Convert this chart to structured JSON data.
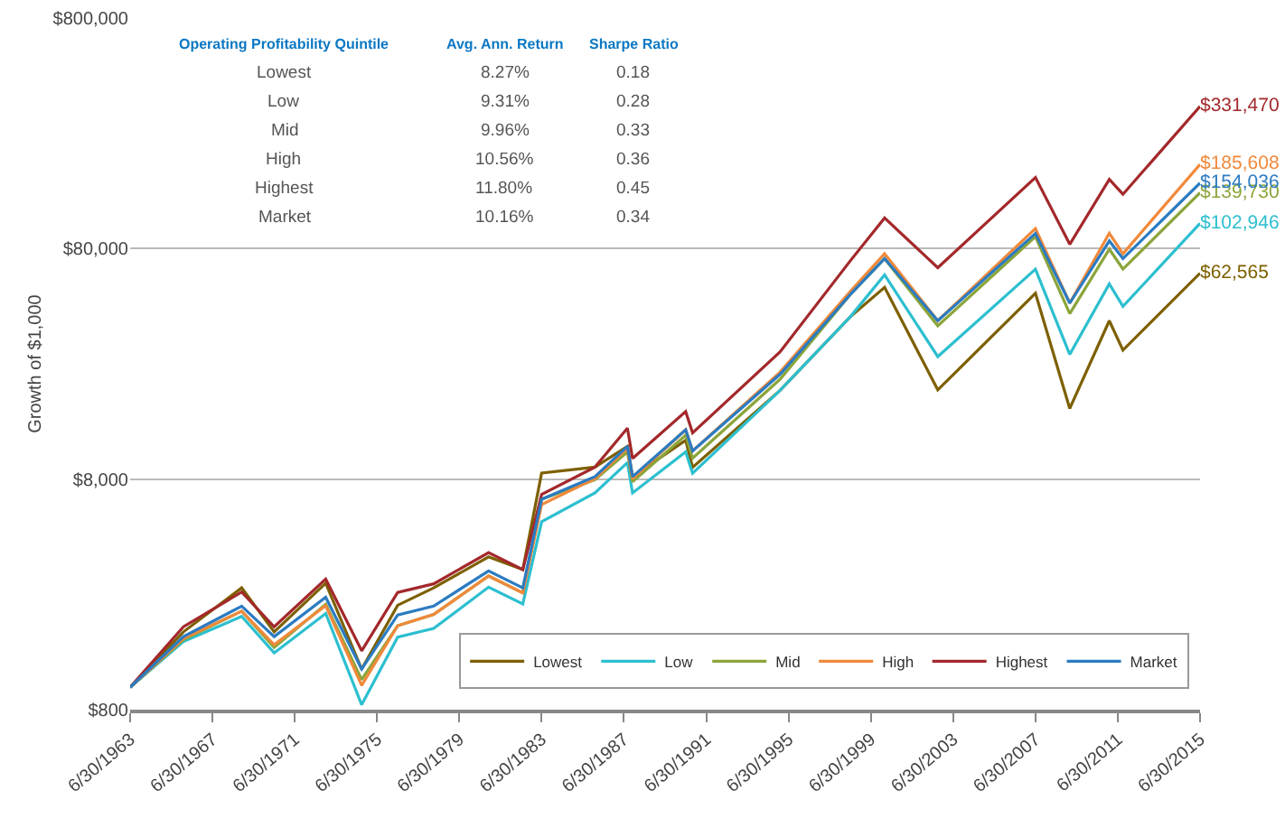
{
  "chart_data": {
    "type": "line",
    "ylabel": "Growth of $1,000",
    "log": "y",
    "grid": "y",
    "legend": "bottom right",
    "marker": "none",
    "line_style": "solid",
    "x": [
      "1963-06-30",
      "1966-01-31",
      "1968-11-30",
      "1970-06-30",
      "1972-12-31",
      "1974-09-30",
      "1976-06-30",
      "1978-03-31",
      "1980-11-30",
      "1982-07-31",
      "1983-06-30",
      "1986-01-31",
      "1987-08-31",
      "1987-11-30",
      "1990-06-30",
      "1990-10-31",
      "1995-01-31",
      "1998-06-30",
      "2000-02-29",
      "2002-09-30",
      "2007-06-30",
      "2009-02-28",
      "2011-01-31",
      "2011-09-30",
      "2015-06-30"
    ],
    "xlim": [
      "1963-06-30",
      "2015-06-30"
    ],
    "xticks": [
      {
        "value": "1963-06-30",
        "label": "6/30/1963"
      },
      {
        "value": "1967-06-30",
        "label": "6/30/1967"
      },
      {
        "value": "1971-06-30",
        "label": "6/30/1971"
      },
      {
        "value": "1975-06-30",
        "label": "6/30/1975"
      },
      {
        "value": "1979-06-30",
        "label": "6/30/1979"
      },
      {
        "value": "1983-06-30",
        "label": "6/30/1983"
      },
      {
        "value": "1987-06-30",
        "label": "6/30/1987"
      },
      {
        "value": "1991-06-30",
        "label": "6/30/1991"
      },
      {
        "value": "1995-06-30",
        "label": "6/30/1995"
      },
      {
        "value": "1999-06-30",
        "label": "6/30/1999"
      },
      {
        "value": "2003-06-30",
        "label": "6/30/2003"
      },
      {
        "value": "2007-06-30",
        "label": "6/30/2007"
      },
      {
        "value": "2011-06-30",
        "label": "6/30/2011"
      },
      {
        "value": "2015-06-30",
        "label": "6/30/2015"
      }
    ],
    "ylim": [
      800,
      800000
    ],
    "yticks": [
      {
        "value": 800,
        "label": "$800"
      },
      {
        "value": 8000,
        "label": "$8,000"
      },
      {
        "value": 80000,
        "label": "$80,000"
      },
      {
        "value": 800000,
        "label": "$800,000"
      }
    ],
    "series": [
      {
        "name": "Lowest",
        "color": "#7d6000",
        "values": [
          1000,
          1740,
          2700,
          1740,
          2830,
          1200,
          2270,
          2700,
          3680,
          3240,
          8500,
          9020,
          11100,
          8200,
          11800,
          9000,
          19400,
          40500,
          54300,
          19500,
          51200,
          16200,
          38900,
          29000,
          62565
        ],
        "value_labels": [
          null,
          null,
          null,
          null,
          null,
          null,
          null,
          null,
          null,
          null,
          null,
          null,
          null,
          null,
          null,
          null,
          null,
          null,
          null,
          null,
          null,
          null,
          null,
          null,
          "$62,565"
        ]
      },
      {
        "name": "Low",
        "color": "#2cbfcf",
        "values": [
          1000,
          1580,
          2030,
          1410,
          2090,
          840,
          1650,
          1800,
          2720,
          2300,
          5230,
          6970,
          9440,
          6970,
          10500,
          8480,
          19400,
          40500,
          61500,
          27200,
          65100,
          27800,
          56200,
          44900,
          102946
        ],
        "value_labels": [
          null,
          null,
          null,
          null,
          null,
          null,
          null,
          null,
          null,
          null,
          null,
          null,
          null,
          null,
          null,
          null,
          null,
          null,
          null,
          null,
          null,
          null,
          null,
          null,
          "$102,946"
        ]
      },
      {
        "name": "Mid",
        "color": "#8ba53a",
        "values": [
          1000,
          1610,
          2140,
          1490,
          2290,
          1080,
          1850,
          2070,
          3040,
          2570,
          6540,
          7950,
          10500,
          7790,
          12400,
          9860,
          21700,
          50600,
          72400,
          37000,
          90200,
          41800,
          79500,
          65200,
          139730
        ],
        "value_labels": [
          null,
          null,
          null,
          null,
          null,
          null,
          null,
          null,
          null,
          null,
          null,
          null,
          null,
          null,
          null,
          null,
          null,
          null,
          null,
          null,
          null,
          null,
          null,
          null,
          "$139,730"
        ]
      },
      {
        "name": "High",
        "color": "#f0893b",
        "values": [
          1000,
          1630,
          2140,
          1530,
          2260,
          1020,
          1850,
          2070,
          3040,
          2570,
          6210,
          8040,
          10900,
          8040,
          13100,
          10600,
          23300,
          52100,
          76000,
          38900,
          97700,
          46400,
          93300,
          76000,
          185608
        ],
        "value_labels": [
          null,
          null,
          null,
          null,
          null,
          null,
          null,
          null,
          null,
          null,
          null,
          null,
          null,
          null,
          null,
          null,
          null,
          null,
          null,
          null,
          null,
          null,
          null,
          null,
          "$185,608"
        ]
      },
      {
        "name": "Highest",
        "color": "#a3282b",
        "values": [
          1000,
          1830,
          2590,
          1830,
          2950,
          1440,
          2580,
          2810,
          3840,
          3240,
          6870,
          9020,
          13300,
          9840,
          15700,
          12700,
          28500,
          70800,
          108600,
          66100,
          162800,
          83500,
          159800,
          137600,
          331470
        ],
        "value_labels": [
          null,
          null,
          null,
          null,
          null,
          null,
          null,
          null,
          null,
          null,
          null,
          null,
          null,
          null,
          null,
          null,
          null,
          null,
          null,
          null,
          null,
          null,
          null,
          null,
          "$331,470"
        ]
      },
      {
        "name": "Market",
        "color": "#2b7bc1",
        "values": [
          1000,
          1660,
          2250,
          1660,
          2460,
          1200,
          2060,
          2250,
          3200,
          2700,
          6540,
          8200,
          11100,
          8200,
          13100,
          10600,
          22800,
          50600,
          72400,
          38900,
          93000,
          46400,
          86400,
          72400,
          154036
        ],
        "value_labels": [
          null,
          null,
          null,
          null,
          null,
          null,
          null,
          null,
          null,
          null,
          null,
          null,
          null,
          null,
          null,
          null,
          null,
          null,
          null,
          null,
          null,
          null,
          null,
          null,
          "$154,036"
        ]
      }
    ],
    "annotations": [
      "Operating Profitability Quintile",
      "Avg. Ann. Return",
      "Sharpe Ratio",
      "Lowest",
      "8.27%",
      "0.18",
      "Low",
      "9.31%",
      "0.28",
      "Mid",
      "9.96%",
      "0.33",
      "High",
      "10.56%",
      "0.36",
      "Highest",
      "11.80%",
      "0.45",
      "Market",
      "10.16%",
      "0.34"
    ]
  }
}
